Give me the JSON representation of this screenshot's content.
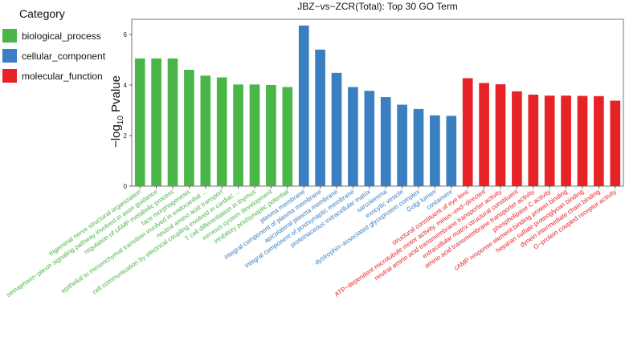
{
  "chart_data": {
    "type": "bar",
    "title": "JBZ−vs−ZCR(Total): Top 30 GO Term",
    "ylabel_prefix": "−log",
    "ylabel_sub": "10",
    "ylabel_suffix": " Pvalue",
    "ylim": [
      0,
      6.6
    ],
    "yticks": [
      0,
      2,
      4,
      6
    ],
    "grid": false,
    "legend_title": "Category",
    "legend_position": "left",
    "series": [
      {
        "name": "biological_process",
        "color": "#4bb648"
      },
      {
        "name": "cellular_component",
        "color": "#3a7fc1"
      },
      {
        "name": "molecular_function",
        "color": "#e82327"
      }
    ],
    "categories": [
      "trigeminal nerve structural organization",
      "semaphorin−plexin signaling pathway involved in axon guidance",
      "regulation of cAMP metabolic process",
      "face morphogenesis",
      "epithelial to mesenchymal transition involved in endocardial ...",
      "neutral amino acid transport",
      "cell communication by electrical coupling involved in cardiac ...",
      "T cell differentiation in thymus",
      "nervous system development",
      "inhibitory postsynaptic potential",
      "plasma membrane",
      "integral component of plasma membrane",
      "apicolateral plasma membrane",
      "integral component of postsynaptic membrane",
      "proteinaceous extracellular matrix",
      "sarcolemma",
      "exocytic vesicle",
      "dystrophin−associated glycoprotein complex",
      "Golgi lumen",
      "costamere",
      "structural constituent of eye lens",
      "ATP−dependent microtubule motor activity, minus−end−directed",
      "neutral amino acid transmembrane transporter activity",
      "extracellular matrix structural constituent",
      "amino acid transmembrane transporter activity",
      "phospholipase C activity",
      "cAMP response element binding protein binding",
      "heparan sulfate proteoglycan binding",
      "dynein intermediate chain binding",
      "G−protein coupled receptor activity"
    ],
    "groups": [
      0,
      0,
      0,
      0,
      0,
      0,
      0,
      0,
      0,
      0,
      1,
      1,
      1,
      1,
      1,
      1,
      1,
      1,
      1,
      1,
      2,
      2,
      2,
      2,
      2,
      2,
      2,
      2,
      2,
      2
    ],
    "values": [
      5.05,
      5.05,
      5.05,
      4.6,
      4.37,
      4.3,
      4.02,
      4.02,
      4.0,
      3.92,
      6.35,
      5.4,
      4.48,
      3.92,
      3.77,
      3.52,
      3.22,
      3.05,
      2.8,
      2.78,
      4.27,
      4.08,
      4.03,
      3.75,
      3.62,
      3.58,
      3.58,
      3.57,
      3.56,
      3.38
    ]
  }
}
